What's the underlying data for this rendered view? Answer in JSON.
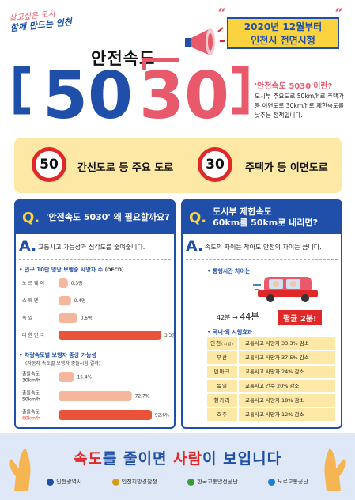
{
  "header": {
    "slogan_line1": "살고싶은 도시",
    "slogan_line2": "함께 만드는 인천",
    "date_line1": "2020년 12월부터",
    "date_line2": "인천시 전면시행",
    "title": "안전속도",
    "big_left": "50",
    "big_right": "30",
    "def_title": "'안전속도 5030'이란?",
    "def_text": "도시부 주요도로 50km/h로 주택가 등 이면도로 30km/h로 제한속도를 낮추는 정책입니다."
  },
  "band": {
    "sign1": "50",
    "text1": "간선도로 등 주요 도로",
    "sign2": "30",
    "text2": "주택가 등 이면도로"
  },
  "left_panel": {
    "q_mark": "Q.",
    "question": "'안전속도 5030' 왜 필요할까요?",
    "a_mark": "A.",
    "answer": "교통사고 가능성과 심각도를 줄여줍니다.",
    "chart1_title": "• 인구 10만 명당 보행중 사망자 수",
    "chart1_source": "(OECD)",
    "chart2_title": "• 차량속도별 보행자 중상 가능성",
    "chart2_sub": "(자동차 속도별 보행자 중돌시험 결과)"
  },
  "chart_data": [
    {
      "type": "bar",
      "title": "인구 10만 명당 보행중 사망자 수",
      "categories": [
        "노르웨이",
        "스웨덴",
        "독일",
        "대한민국"
      ],
      "values": [
        0.3,
        0.4,
        0.6,
        3.3
      ],
      "value_labels": [
        "0.3명",
        "0.4명",
        "0.6명",
        "3.3명"
      ],
      "orientation": "horizontal",
      "highlight_color": "#e8533a",
      "color": "#f4b79d"
    },
    {
      "type": "bar",
      "title": "차량속도별 보행자 중상 가능성",
      "categories": [
        "충돌속도 30km/h",
        "충돌속도 50km/h",
        "충돌속도 60km/h"
      ],
      "category_lines": [
        [
          "충돌속도",
          "30km/h"
        ],
        [
          "충돌속도",
          "50km/h"
        ],
        [
          "충돌속도",
          "60km/h"
        ]
      ],
      "values": [
        15.4,
        72.7,
        92.6
      ],
      "value_labels": [
        "15.4%",
        "72.7%",
        "92.6%"
      ],
      "orientation": "horizontal",
      "highlight_color": "#e8533a",
      "color": "#f4b79d"
    }
  ],
  "right_panel": {
    "q_mark": "Q.",
    "question_l1": "도시부 제한속도",
    "question_l2": "60km를 50km로 내리면?",
    "a_mark": "A.",
    "answer": "속도의 차이는 작아도 안전의 차이는 큽니다.",
    "travel_title": "• 통행시간 차이는",
    "time_before": "42분",
    "arrow": "→",
    "time_after": "44분",
    "avg": "평균 2분!",
    "effects_title": "• 국내·외 시행효과",
    "effects": [
      {
        "place": "인천",
        "place_sub": "(시범)",
        "effect": "교통사고 사망자 33.3% 감소"
      },
      {
        "place": "부산",
        "place_sub": "",
        "effect": "교통사고 사망자 37.5% 감소"
      },
      {
        "place": "덴마크",
        "place_sub": "",
        "effect": "교통사고 사망자 24% 감소"
      },
      {
        "place": "독일",
        "place_sub": "",
        "effect": "교통사고 건수 20% 감소"
      },
      {
        "place": "헝가리",
        "place_sub": "",
        "effect": "교통사고 사망자 18% 감소"
      },
      {
        "place": "호주",
        "place_sub": "",
        "effect": "교통사고 사망자 12% 감소"
      }
    ]
  },
  "footer": {
    "slogan_a": "속도",
    "slogan_b": "를 줄이면 ",
    "slogan_c": "사람",
    "slogan_d": "이 보입니다",
    "logos": [
      "인천광역시",
      "인천지방경찰청",
      "한국교통안전공단",
      "도로교통공단"
    ],
    "logo_colors": [
      "#1f4fa8",
      "#d4a017",
      "#3a9a3a",
      "#1f7fd0"
    ]
  },
  "colors": {
    "blue": "#1f4fa8",
    "red": "#e02828",
    "yellow": "#fbd33f",
    "cream": "#fde8a6"
  }
}
